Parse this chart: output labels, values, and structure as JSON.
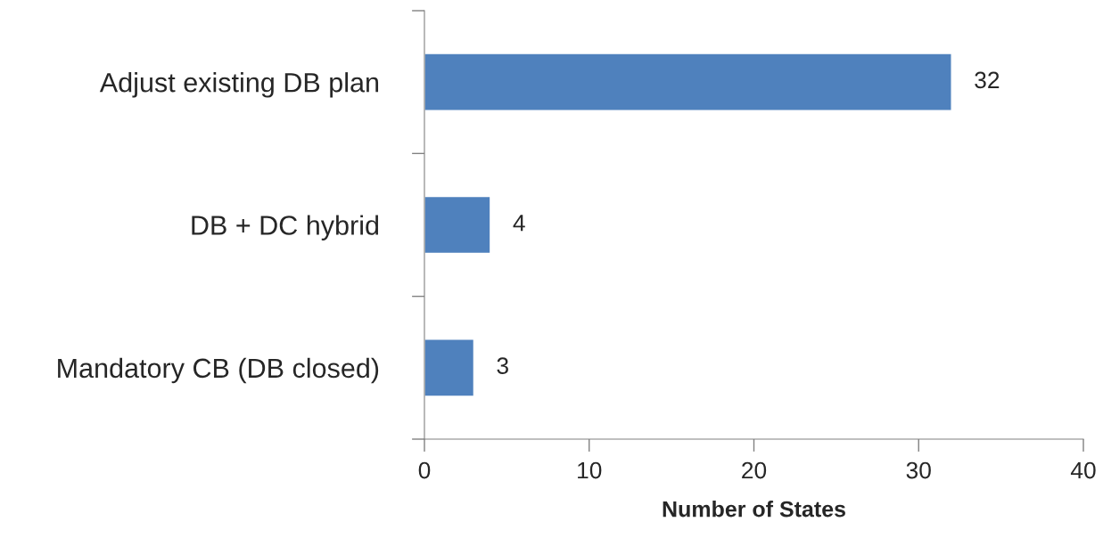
{
  "chart_data": {
    "type": "bar",
    "orientation": "horizontal",
    "xlabel": "Number of States",
    "categories": [
      "Adjust existing DB plan",
      "DB + DC hybrid",
      "Mandatory CB (DB closed)"
    ],
    "values": [
      32,
      4,
      3
    ],
    "color": "#4f81bd",
    "data_labels": true,
    "xlim": [
      0,
      40
    ],
    "xticks": [
      0,
      10,
      20,
      30,
      40
    ],
    "grid": false,
    "legend": false
  }
}
